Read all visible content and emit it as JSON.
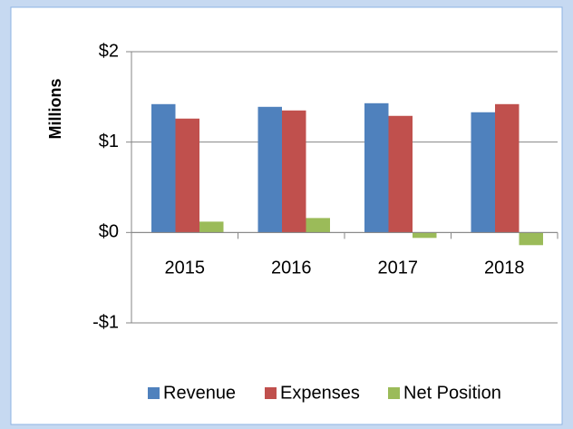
{
  "chart_data": {
    "type": "bar",
    "ylabel": "Millions",
    "categories": [
      "2015",
      "2016",
      "2017",
      "2018"
    ],
    "series": [
      {
        "name": "Revenue",
        "color": "#4f81bd",
        "values": [
          1.42,
          1.39,
          1.43,
          1.33
        ]
      },
      {
        "name": "Expenses",
        "color": "#c0504d",
        "values": [
          1.26,
          1.35,
          1.29,
          1.42
        ]
      },
      {
        "name": "Net Position",
        "color": "#9bbb59",
        "values": [
          0.12,
          0.16,
          -0.06,
          -0.14
        ]
      }
    ],
    "ylim": [
      -1,
      2
    ],
    "yticks": [
      {
        "value": -1,
        "label": "-$1"
      },
      {
        "value": 0,
        "label": "$0"
      },
      {
        "value": 1,
        "label": "$1"
      },
      {
        "value": 2,
        "label": "$2"
      }
    ],
    "grid": true,
    "legend": "bottom"
  }
}
